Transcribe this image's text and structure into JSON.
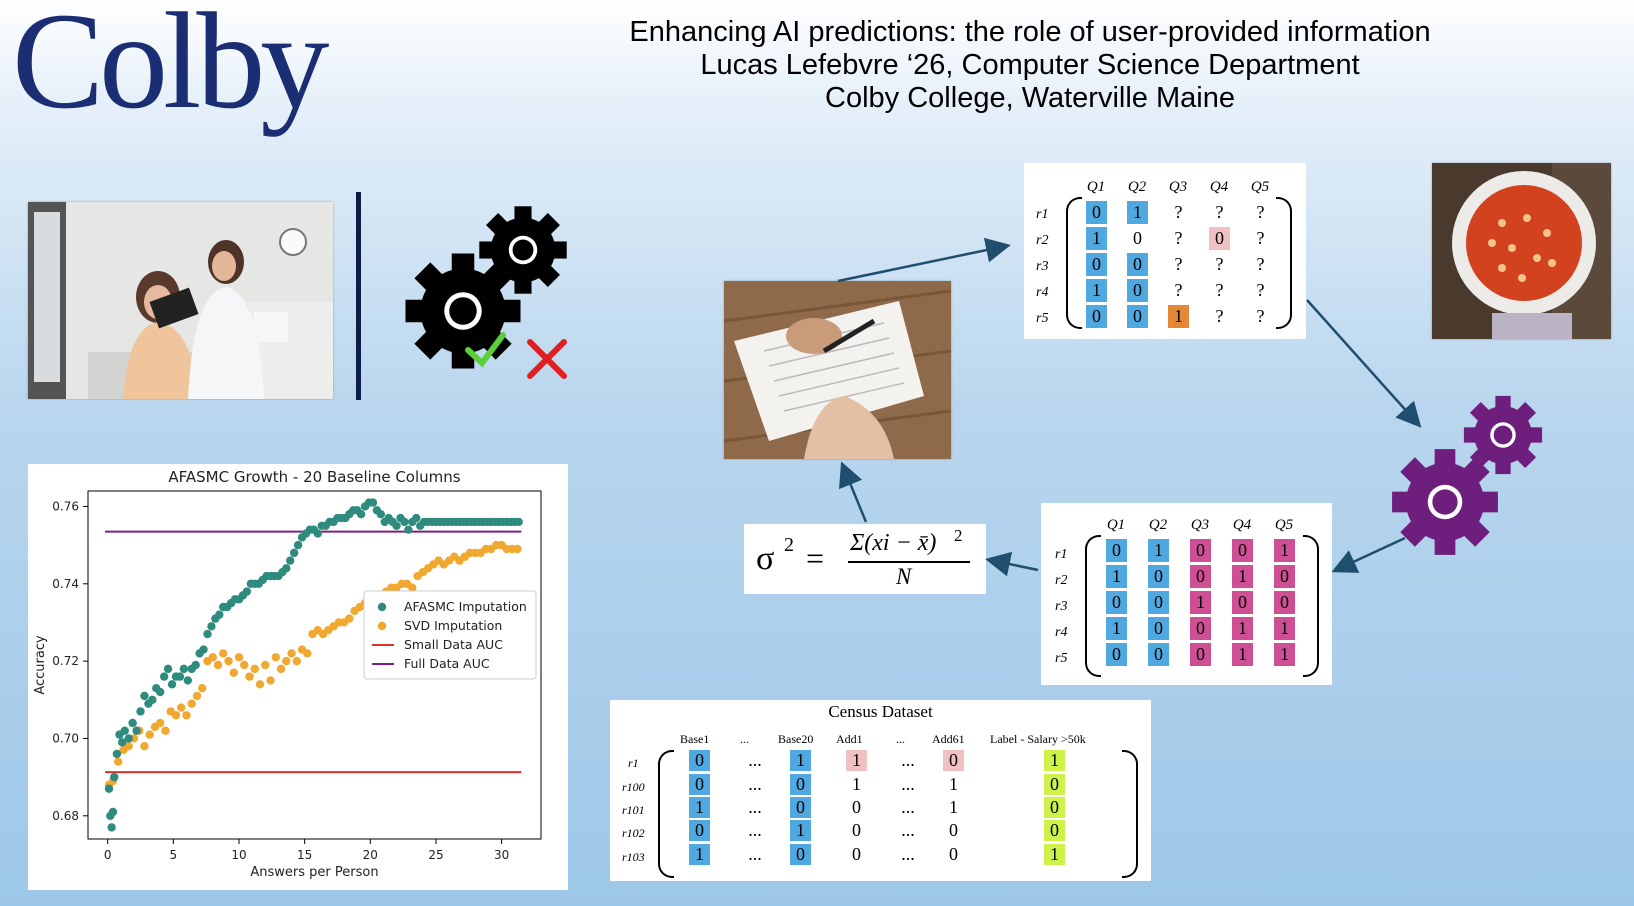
{
  "logo": "Colby",
  "title_lines": [
    "Enhancing AI predictions: the role of user-provided information",
    "Lucas Lefebvre ‘26, Computer Science Department",
    "Colby College, Waterville Maine"
  ],
  "icons": [
    "gear-icon",
    "check-icon",
    "cross-icon"
  ],
  "colors": {
    "navy": "#1b2e73",
    "blue_cell": "#4fa9e0",
    "pink_cell": "#cf4f95",
    "orange_cell": "#e48836",
    "gear_purple": "#6e1f7e",
    "afasmc": "#2e8b7e",
    "svd": "#f0a830"
  },
  "matrix_top": {
    "cols": [
      "Q1",
      "Q2",
      "Q3",
      "Q4",
      "Q5"
    ],
    "rows": [
      "r1",
      "r2",
      "r3",
      "r4",
      "r5"
    ],
    "cells": [
      [
        "0",
        "1",
        "?",
        "?",
        "?"
      ],
      [
        "1",
        "0",
        "?",
        "0",
        "?"
      ],
      [
        "0",
        "0",
        "?",
        "?",
        "?"
      ],
      [
        "1",
        "0",
        "?",
        "?",
        "?"
      ],
      [
        "0",
        "0",
        "1",
        "?",
        "?"
      ]
    ]
  },
  "matrix_mid": {
    "cols": [
      "Q1",
      "Q2",
      "Q3",
      "Q4",
      "Q5"
    ],
    "rows": [
      "r1",
      "r2",
      "r3",
      "r4",
      "r5"
    ],
    "cells": [
      [
        "0",
        "1",
        "0",
        "0",
        "1"
      ],
      [
        "1",
        "0",
        "0",
        "1",
        "0"
      ],
      [
        "0",
        "0",
        "1",
        "0",
        "0"
      ],
      [
        "1",
        "0",
        "0",
        "1",
        "1"
      ],
      [
        "0",
        "0",
        "0",
        "1",
        "1"
      ]
    ]
  },
  "formula": {
    "lhs": "σ",
    "exp": "2",
    "eq": "=",
    "num": "Σ(xi − x̄)",
    "num_exp": "2",
    "den": "N"
  },
  "census": {
    "title": "Census Dataset",
    "headers": [
      "Base1",
      "...",
      "Base20",
      "Add1",
      "...",
      "Add61",
      "Label - Salary >50k"
    ],
    "rows": [
      "r1",
      "r100",
      "r101",
      "r102",
      "r103"
    ],
    "cells": [
      [
        "0",
        "...",
        "1",
        "1",
        "...",
        "0",
        "1"
      ],
      [
        "0",
        "...",
        "0",
        "1",
        "...",
        "1",
        "0"
      ],
      [
        "1",
        "...",
        "0",
        "0",
        "...",
        "1",
        "0"
      ],
      [
        "0",
        "...",
        "1",
        "0",
        "...",
        "0",
        "0"
      ],
      [
        "1",
        "...",
        "0",
        "0",
        "...",
        "0",
        "1"
      ]
    ]
  },
  "chart_data": {
    "type": "scatter",
    "title": "AFASMC Growth - 20 Baseline Columns",
    "xlabel": "Answers per Person",
    "ylabel": "Accuracy",
    "xlim": [
      -1.5,
      33
    ],
    "ylim": [
      0.674,
      0.764
    ],
    "xticks": [
      "0",
      "5",
      "10",
      "15",
      "20",
      "25",
      "30"
    ],
    "yticks": [
      "0.68",
      "0.70",
      "0.72",
      "0.74",
      "0.76"
    ],
    "legend_position": "center-right",
    "legend": [
      "AFASMC Imputation",
      "SVD Imputation",
      "Small Data AUC",
      "Full Data AUC"
    ],
    "hlines": [
      {
        "name": "Small Data AUC",
        "y": 0.6913,
        "color": "#e0302a"
      },
      {
        "name": "Full Data AUC",
        "y": 0.7535,
        "color": "#7b1d8a"
      }
    ],
    "series": [
      {
        "name": "AFASMC Imputation",
        "color": "#2e8b7e",
        "points": [
          [
            0.1,
            0.687
          ],
          [
            0.2,
            0.68
          ],
          [
            0.3,
            0.677
          ],
          [
            0.4,
            0.681
          ],
          [
            0.5,
            0.69
          ],
          [
            0.7,
            0.696
          ],
          [
            0.9,
            0.701
          ],
          [
            1.1,
            0.699
          ],
          [
            1.3,
            0.702
          ],
          [
            1.6,
            0.7
          ],
          [
            1.9,
            0.704
          ],
          [
            2.2,
            0.702
          ],
          [
            2.5,
            0.707
          ],
          [
            2.8,
            0.711
          ],
          [
            3.1,
            0.709
          ],
          [
            3.4,
            0.71
          ],
          [
            3.7,
            0.713
          ],
          [
            4.0,
            0.712
          ],
          [
            4.3,
            0.716
          ],
          [
            4.6,
            0.718
          ],
          [
            4.9,
            0.714
          ],
          [
            5.2,
            0.716
          ],
          [
            5.5,
            0.716
          ],
          [
            5.8,
            0.718
          ],
          [
            6.1,
            0.715
          ],
          [
            6.4,
            0.718
          ],
          [
            6.7,
            0.719
          ],
          [
            7.0,
            0.722
          ],
          [
            7.3,
            0.723
          ],
          [
            7.6,
            0.727
          ],
          [
            7.9,
            0.729
          ],
          [
            8.2,
            0.731
          ],
          [
            8.5,
            0.732
          ],
          [
            8.8,
            0.734
          ],
          [
            9.1,
            0.734
          ],
          [
            9.4,
            0.735
          ],
          [
            9.7,
            0.736
          ],
          [
            10.0,
            0.736
          ],
          [
            10.3,
            0.737
          ],
          [
            10.6,
            0.738
          ],
          [
            10.9,
            0.74
          ],
          [
            11.2,
            0.74
          ],
          [
            11.5,
            0.74
          ],
          [
            11.8,
            0.741
          ],
          [
            12.1,
            0.742
          ],
          [
            12.4,
            0.742
          ],
          [
            12.7,
            0.742
          ],
          [
            13.0,
            0.742
          ],
          [
            13.3,
            0.743
          ],
          [
            13.6,
            0.744
          ],
          [
            13.9,
            0.746
          ],
          [
            14.2,
            0.748
          ],
          [
            14.5,
            0.75
          ],
          [
            14.8,
            0.752
          ],
          [
            15.1,
            0.753
          ],
          [
            15.4,
            0.754
          ],
          [
            15.7,
            0.754
          ],
          [
            16.0,
            0.753
          ],
          [
            16.3,
            0.755
          ],
          [
            16.6,
            0.755
          ],
          [
            16.9,
            0.756
          ],
          [
            17.2,
            0.756
          ],
          [
            17.5,
            0.757
          ],
          [
            17.8,
            0.757
          ],
          [
            18.1,
            0.757
          ],
          [
            18.4,
            0.758
          ],
          [
            18.7,
            0.759
          ],
          [
            19.0,
            0.759
          ],
          [
            19.3,
            0.758
          ],
          [
            19.6,
            0.76
          ],
          [
            19.9,
            0.761
          ],
          [
            20.2,
            0.761
          ],
          [
            20.5,
            0.759
          ],
          [
            20.8,
            0.758
          ],
          [
            21.1,
            0.756
          ],
          [
            21.4,
            0.757
          ],
          [
            21.7,
            0.756
          ],
          [
            22.0,
            0.755
          ],
          [
            22.3,
            0.757
          ],
          [
            22.6,
            0.756
          ],
          [
            22.9,
            0.754
          ],
          [
            23.2,
            0.756
          ],
          [
            23.5,
            0.757
          ],
          [
            23.8,
            0.755
          ],
          [
            24.1,
            0.756
          ],
          [
            24.4,
            0.756
          ],
          [
            24.7,
            0.756
          ],
          [
            25.0,
            0.756
          ],
          [
            25.3,
            0.756
          ],
          [
            25.6,
            0.756
          ],
          [
            25.9,
            0.756
          ],
          [
            26.2,
            0.756
          ],
          [
            26.5,
            0.756
          ],
          [
            26.8,
            0.756
          ],
          [
            27.1,
            0.756
          ],
          [
            27.4,
            0.756
          ],
          [
            27.7,
            0.756
          ],
          [
            28.0,
            0.756
          ],
          [
            28.3,
            0.756
          ],
          [
            28.6,
            0.756
          ],
          [
            28.9,
            0.756
          ],
          [
            29.2,
            0.756
          ],
          [
            29.5,
            0.756
          ],
          [
            29.8,
            0.756
          ],
          [
            30.1,
            0.756
          ],
          [
            30.4,
            0.756
          ],
          [
            30.7,
            0.756
          ],
          [
            31.0,
            0.756
          ],
          [
            31.3,
            0.756
          ]
        ]
      },
      {
        "name": "SVD Imputation",
        "color": "#f0a830",
        "points": [
          [
            0.1,
            0.688
          ],
          [
            0.4,
            0.689
          ],
          [
            0.8,
            0.694
          ],
          [
            1.2,
            0.697
          ],
          [
            1.6,
            0.698
          ],
          [
            2.0,
            0.7
          ],
          [
            2.4,
            0.702
          ],
          [
            2.8,
            0.698
          ],
          [
            3.2,
            0.701
          ],
          [
            3.6,
            0.703
          ],
          [
            4.0,
            0.704
          ],
          [
            4.4,
            0.702
          ],
          [
            4.8,
            0.707
          ],
          [
            5.2,
            0.706
          ],
          [
            5.6,
            0.708
          ],
          [
            6.0,
            0.706
          ],
          [
            6.4,
            0.709
          ],
          [
            6.8,
            0.711
          ],
          [
            7.2,
            0.713
          ],
          [
            7.6,
            0.72
          ],
          [
            8.0,
            0.721
          ],
          [
            8.4,
            0.719
          ],
          [
            8.8,
            0.722
          ],
          [
            9.2,
            0.72
          ],
          [
            9.6,
            0.717
          ],
          [
            10.0,
            0.721
          ],
          [
            10.4,
            0.719
          ],
          [
            10.8,
            0.716
          ],
          [
            11.2,
            0.718
          ],
          [
            11.6,
            0.714
          ],
          [
            12.0,
            0.719
          ],
          [
            12.4,
            0.715
          ],
          [
            12.8,
            0.721
          ],
          [
            13.2,
            0.718
          ],
          [
            13.6,
            0.72
          ],
          [
            14.0,
            0.722
          ],
          [
            14.4,
            0.72
          ],
          [
            14.8,
            0.723
          ],
          [
            15.2,
            0.722
          ],
          [
            15.6,
            0.727
          ],
          [
            16.0,
            0.728
          ],
          [
            16.4,
            0.727
          ],
          [
            16.8,
            0.728
          ],
          [
            17.2,
            0.729
          ],
          [
            17.6,
            0.73
          ],
          [
            18.0,
            0.73
          ],
          [
            18.4,
            0.731
          ],
          [
            18.8,
            0.733
          ],
          [
            19.2,
            0.734
          ],
          [
            19.6,
            0.735
          ],
          [
            20.0,
            0.734
          ],
          [
            20.4,
            0.736
          ],
          [
            20.8,
            0.737
          ],
          [
            21.2,
            0.738
          ],
          [
            21.6,
            0.739
          ],
          [
            22.0,
            0.739
          ],
          [
            22.4,
            0.74
          ],
          [
            22.8,
            0.74
          ],
          [
            23.2,
            0.739
          ],
          [
            23.6,
            0.742
          ],
          [
            24.0,
            0.743
          ],
          [
            24.4,
            0.744
          ],
          [
            24.8,
            0.745
          ],
          [
            25.2,
            0.746
          ],
          [
            25.6,
            0.745
          ],
          [
            26.0,
            0.746
          ],
          [
            26.4,
            0.747
          ],
          [
            26.8,
            0.746
          ],
          [
            27.2,
            0.747
          ],
          [
            27.6,
            0.748
          ],
          [
            28.0,
            0.748
          ],
          [
            28.4,
            0.748
          ],
          [
            28.8,
            0.749
          ],
          [
            29.2,
            0.749
          ],
          [
            29.6,
            0.75
          ],
          [
            30.0,
            0.75
          ],
          [
            30.4,
            0.749
          ],
          [
            30.8,
            0.749
          ],
          [
            31.2,
            0.749
          ]
        ]
      }
    ]
  }
}
